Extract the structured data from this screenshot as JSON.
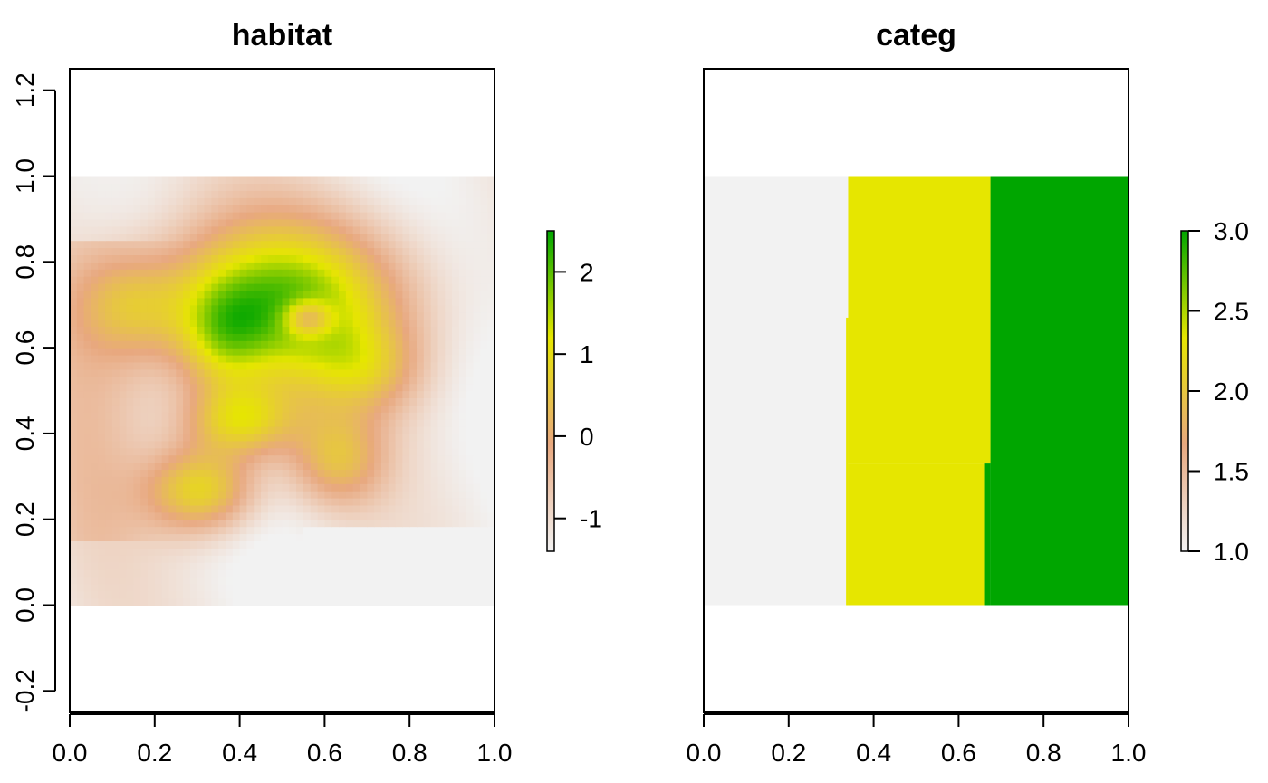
{
  "chart_data": [
    {
      "type": "heatmap",
      "title": "habitat",
      "xlim": [
        0,
        1
      ],
      "ylim": [
        -0.25,
        1.25
      ],
      "x_ticks": [
        "0.0",
        "0.2",
        "0.4",
        "0.6",
        "0.8",
        "1.0"
      ],
      "y_ticks": [
        "-0.2",
        "0.0",
        "0.2",
        "0.4",
        "0.6",
        "0.8",
        "1.0",
        "1.2"
      ],
      "raster_extent": {
        "x": [
          0,
          1
        ],
        "y": [
          0,
          1
        ]
      },
      "value_range": [
        -1.4,
        2.5
      ],
      "legend": {
        "ticks": [
          "-1",
          "0",
          "1",
          "2"
        ],
        "tick_values": [
          -1,
          0,
          1,
          2
        ],
        "colors": [
          "#f2f2f2",
          "#e8a87f",
          "#e6e600",
          "#00a600"
        ]
      },
      "features": [
        {
          "kind": "peak",
          "cx": 0.31,
          "cy": 0.27,
          "sx": 0.09,
          "sy": 0.07,
          "value": 2.2
        },
        {
          "kind": "peak",
          "cx": 0.4,
          "cy": 0.43,
          "sx": 0.09,
          "sy": 0.06,
          "value": 2.0
        },
        {
          "kind": "peak",
          "cx": 0.5,
          "cy": 0.7,
          "sx": 0.2,
          "sy": 0.14,
          "value": 3.2
        },
        {
          "kind": "peak",
          "cx": 0.36,
          "cy": 0.63,
          "sx": 0.07,
          "sy": 0.09,
          "value": 1.2
        },
        {
          "kind": "peak",
          "cx": 0.15,
          "cy": 0.7,
          "sx": 0.09,
          "sy": 0.08,
          "value": 1.1
        },
        {
          "kind": "peak",
          "cx": 0.7,
          "cy": 0.55,
          "sx": 0.09,
          "sy": 0.07,
          "value": 1.0
        },
        {
          "kind": "peak",
          "cx": 0.63,
          "cy": 0.34,
          "sx": 0.08,
          "sy": 0.08,
          "value": 1.5
        },
        {
          "kind": "dip",
          "cx": 0.56,
          "cy": 0.67,
          "sx": 0.04,
          "sy": 0.03,
          "value": -1.7
        }
      ]
    },
    {
      "type": "heatmap",
      "title": "categ",
      "xlim": [
        0,
        1
      ],
      "ylim": [
        -0.25,
        1.25
      ],
      "x_ticks": [
        "0.0",
        "0.2",
        "0.4",
        "0.6",
        "0.8",
        "1.0"
      ],
      "raster_extent": {
        "x": [
          0,
          1
        ],
        "y": [
          0,
          1
        ]
      },
      "value_range": [
        1,
        3
      ],
      "legend": {
        "ticks": [
          "1.0",
          "1.5",
          "2.0",
          "2.5",
          "3.0"
        ],
        "tick_values": [
          1,
          1.5,
          2,
          2.5,
          3
        ],
        "colors": [
          "#f2f2f2",
          "#e8a87f",
          "#e6e600",
          "#00a600"
        ]
      },
      "categories": [
        {
          "value": 1,
          "color": "#f2f2f2",
          "x_from": 0,
          "x_to": 0.34,
          "x_to_below_y": 0.335,
          "y_step": 0.67
        },
        {
          "value": 2,
          "color": "#e6e600",
          "x_from": 0.34,
          "x_to": 0.675,
          "x_to_below_y": 0.66,
          "y_step": 0.33
        },
        {
          "value": 3,
          "color": "#00a600",
          "x_from": 0.675,
          "x_to": 1
        }
      ]
    }
  ]
}
